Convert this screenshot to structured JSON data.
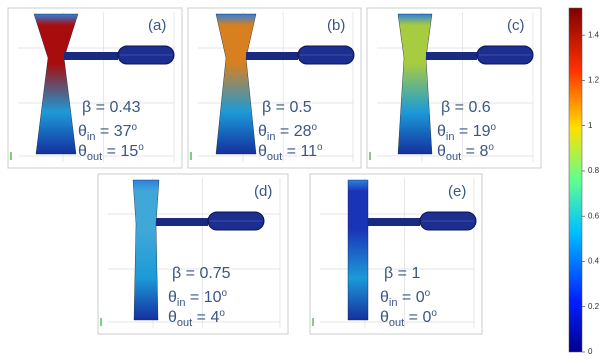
{
  "panels": [
    {
      "label": "(a)",
      "beta": "β = 0.43",
      "theta_in": {
        "symbol": "θ",
        "sub": "in",
        "text": " = 37",
        "sup": "o"
      },
      "theta_out": {
        "symbol": "θ",
        "sub": "out",
        "text": " = 15",
        "sup": "o"
      }
    },
    {
      "label": "(b)",
      "beta": "β = 0.5",
      "theta_in": {
        "symbol": "θ",
        "sub": "in",
        "text": " = 28",
        "sup": "o"
      },
      "theta_out": {
        "symbol": "θ",
        "sub": "out",
        "text": " = 11",
        "sup": "o"
      }
    },
    {
      "label": "(c)",
      "beta": "β = 0.6",
      "theta_in": {
        "symbol": "θ",
        "sub": "in",
        "text": " = 19",
        "sup": "o"
      },
      "theta_out": {
        "symbol": "θ",
        "sub": "out",
        "text": " = 8",
        "sup": "o"
      }
    },
    {
      "label": "(d)",
      "beta": "β = 0.75",
      "theta_in": {
        "symbol": "θ",
        "sub": "in",
        "text": " = 10",
        "sup": "o"
      },
      "theta_out": {
        "symbol": "θ",
        "sub": "out",
        "text": " = 4",
        "sup": "o"
      }
    },
    {
      "label": "(e)",
      "beta": "β = 1",
      "theta_in": {
        "symbol": "θ",
        "sub": "in",
        "text": " = 0",
        "sup": "o"
      },
      "theta_out": {
        "symbol": "θ",
        "sub": "out",
        "text": " = 0",
        "sup": "o"
      }
    }
  ],
  "colorbar": {
    "lim": [
      0,
      1.52
    ],
    "ticks": [
      0,
      0.2,
      0.4,
      0.6,
      0.8,
      1,
      1.2,
      1.4
    ]
  }
}
